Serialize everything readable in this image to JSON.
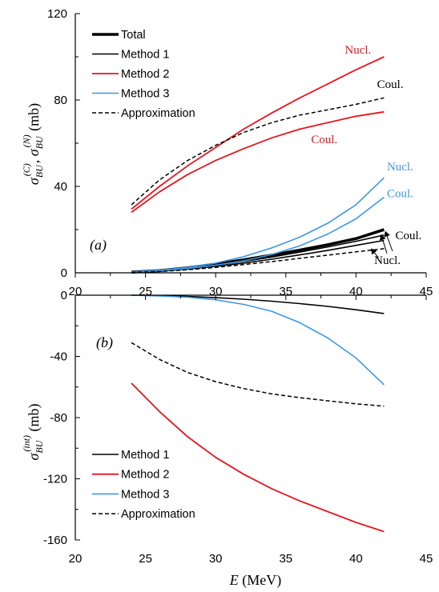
{
  "colors": {
    "total": "#000000",
    "method1": "#000000",
    "method2": "#e8141e",
    "method3": "#3d97e6",
    "approximation": "#000000"
  },
  "chart_data": [
    {
      "type": "line",
      "panel_label": "(a)",
      "ylabel_parts": {
        "base": "σ",
        "sub1": "BU",
        "sup1": "(C)",
        "sep": ", ",
        "sub2": "BU",
        "sup2": "(N)",
        "unit": " (mb)"
      },
      "xlim": [
        20,
        45
      ],
      "ylim": [
        0,
        120
      ],
      "xticks": [
        "20",
        "25",
        "30",
        "35",
        "40",
        "45"
      ],
      "yticks": [
        "0",
        "40",
        "80",
        "120"
      ],
      "grid": false,
      "legend": {
        "position": "top-left",
        "entries": [
          "Total",
          "Method 1",
          "Method 2",
          "Method 3",
          "Approximation"
        ]
      },
      "series": [
        {
          "name": "Total",
          "style": "total",
          "x": [
            24,
            26,
            28,
            30,
            32,
            34,
            36,
            38,
            40,
            42
          ],
          "y": [
            0.3,
            1.0,
            2.3,
            4.0,
            6.0,
            8.2,
            10.5,
            13.0,
            15.8,
            20.0
          ]
        },
        {
          "name": "Method 1",
          "style": "method1",
          "x": [
            24,
            26,
            28,
            30,
            32,
            34,
            36,
            38,
            40,
            42
          ],
          "y": [
            0.3,
            0.9,
            2.0,
            3.5,
            5.3,
            7.3,
            9.6,
            12.0,
            14.6,
            17.5
          ]
        },
        {
          "name": "Method 1",
          "style": "method1",
          "x": [
            24,
            26,
            28,
            30,
            32,
            34,
            36,
            38,
            40,
            42
          ],
          "y": [
            0.2,
            0.8,
            1.7,
            3.0,
            4.5,
            6.3,
            8.3,
            10.4,
            12.7,
            15.0
          ]
        },
        {
          "name": "Method 2",
          "style": "method2",
          "x": [
            24,
            26,
            28,
            30,
            32,
            34,
            36,
            38,
            40,
            42
          ],
          "y": [
            29.5,
            40.0,
            49.5,
            58.0,
            66.5,
            74.0,
            81.0,
            87.5,
            94.0,
            100.0
          ]
        },
        {
          "name": "Method 2",
          "style": "method2",
          "x": [
            24,
            26,
            28,
            30,
            32,
            34,
            36,
            38,
            40,
            42
          ],
          "y": [
            28.0,
            37.5,
            45.5,
            52.0,
            57.5,
            62.5,
            66.5,
            69.5,
            72.5,
            74.5
          ]
        },
        {
          "name": "Method 3",
          "style": "method3",
          "x": [
            24,
            26,
            28,
            30,
            32,
            34,
            36,
            38,
            40,
            42
          ],
          "y": [
            0.4,
            1.2,
            2.5,
            4.5,
            7.5,
            11.5,
            16.5,
            23.0,
            31.5,
            44.0
          ]
        },
        {
          "name": "Method 3",
          "style": "method3",
          "x": [
            24,
            26,
            28,
            30,
            32,
            34,
            36,
            38,
            40,
            42
          ],
          "y": [
            0.3,
            0.9,
            2.0,
            3.5,
            5.5,
            8.5,
            12.5,
            18.0,
            25.0,
            35.0
          ]
        },
        {
          "name": "Approximation",
          "style": "approximation",
          "x": [
            24,
            26,
            28,
            30,
            32,
            34,
            36,
            38,
            40,
            42
          ],
          "y": [
            31.5,
            43.0,
            52.0,
            59.0,
            65.0,
            69.5,
            73.0,
            75.5,
            78.0,
            81.0
          ]
        },
        {
          "name": "Approximation",
          "style": "approximation",
          "x": [
            24,
            26,
            28,
            30,
            32,
            34,
            36,
            38,
            40,
            42
          ],
          "y": [
            0.2,
            0.6,
            1.4,
            2.5,
            3.8,
            5.2,
            6.7,
            8.2,
            9.7,
            11.2
          ]
        }
      ],
      "annotations": [
        {
          "text": "Nucl.",
          "color": "method2",
          "x": 39.2,
          "y": 101.5
        },
        {
          "text": "Coul.",
          "color": "approximation",
          "x": 41.5,
          "y": 85.5
        },
        {
          "text": "Coul.",
          "color": "method2",
          "x": 36.8,
          "y": 60.0
        },
        {
          "text": "Nucl.",
          "color": "method3",
          "x": 42.2,
          "y": 47.5
        },
        {
          "text": "Coul.",
          "color": "method3",
          "x": 42.2,
          "y": 35.0
        },
        {
          "text": "Coul.",
          "color": "approximation",
          "x": 42.8,
          "y": 15.5
        },
        {
          "text": "Nucl.",
          "color": "approximation",
          "x": 41.3,
          "y": 4.0
        }
      ],
      "arrows": [
        {
          "from": [
            41.6,
            7.0
          ],
          "to": [
            41.1,
            11.0
          ]
        },
        {
          "from": [
            42.2,
            9.0
          ],
          "to": [
            41.8,
            17.5
          ]
        },
        {
          "from": [
            42.6,
            10.0
          ],
          "to": [
            42.1,
            19.0
          ]
        }
      ]
    },
    {
      "type": "line",
      "panel_label": "(b)",
      "ylabel_parts": {
        "base": "σ",
        "sub1": "BU",
        "sup1": "(int)",
        "unit": " (mb)"
      },
      "xlabel": "E",
      "xlabel_unit": " (MeV)",
      "xlim": [
        20,
        45
      ],
      "ylim": [
        -160,
        0
      ],
      "xticks": [
        "20",
        "25",
        "30",
        "35",
        "40",
        "45"
      ],
      "yticks": [
        "-160",
        "-120",
        "-80",
        "-40",
        "0"
      ],
      "grid": false,
      "legend": {
        "position": "bottom-left",
        "entries": [
          "Method 1",
          "Method 2",
          "Method 3",
          "Approximation"
        ]
      },
      "series": [
        {
          "name": "Method 1",
          "style": "method1",
          "x": [
            24,
            26,
            28,
            30,
            32,
            34,
            36,
            38,
            40,
            42
          ],
          "y": [
            0,
            -0.3,
            -0.8,
            -1.6,
            -2.6,
            -3.9,
            -5.5,
            -7.3,
            -9.5,
            -12.0
          ]
        },
        {
          "name": "Method 2",
          "style": "method2",
          "x": [
            24,
            26,
            28,
            30,
            32,
            34,
            36,
            38,
            40,
            42
          ],
          "y": [
            -57.5,
            -76.0,
            -92.5,
            -106.0,
            -117.0,
            -126.5,
            -134.5,
            -141.5,
            -148.5,
            -154.5
          ]
        },
        {
          "name": "Method 3",
          "style": "method3",
          "x": [
            24,
            26,
            28,
            30,
            32,
            34,
            36,
            38,
            40,
            42
          ],
          "y": [
            0,
            -0.5,
            -1.3,
            -3.0,
            -6.0,
            -10.5,
            -18.0,
            -28.0,
            -41.0,
            -58.5
          ]
        },
        {
          "name": "Approximation",
          "style": "approximation",
          "x": [
            24,
            26,
            28,
            30,
            32,
            34,
            36,
            38,
            40,
            42
          ],
          "y": [
            -31.0,
            -42.0,
            -50.5,
            -56.5,
            -61.0,
            -64.5,
            -67.0,
            -69.0,
            -71.0,
            -72.5
          ]
        }
      ]
    }
  ]
}
